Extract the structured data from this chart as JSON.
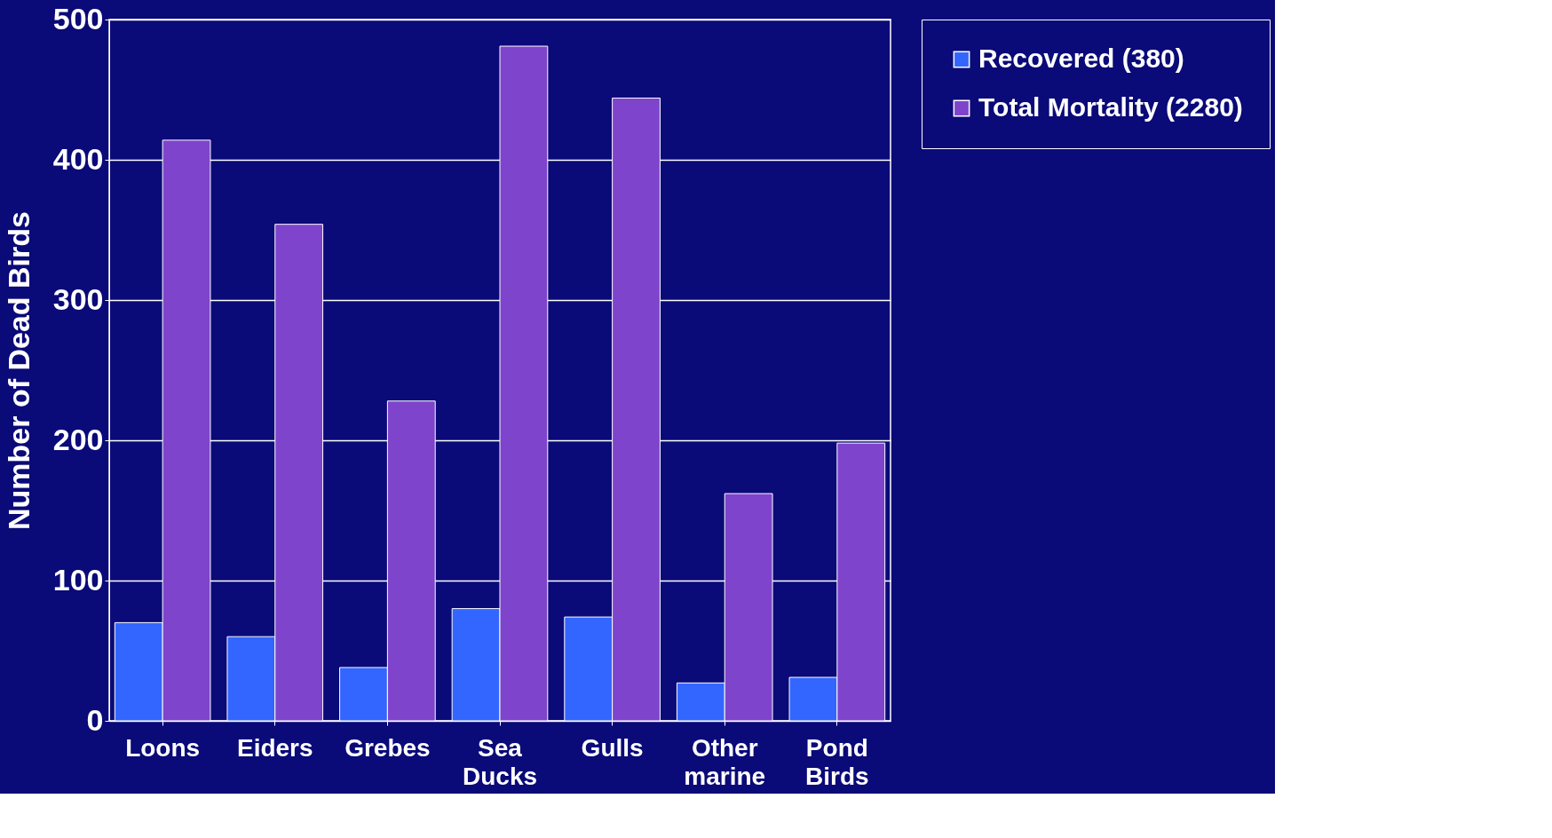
{
  "chart_data": {
    "type": "bar",
    "ylabel": "Number of Dead Birds",
    "categories": [
      "Loons",
      "Eiders",
      "Grebes",
      "Sea Ducks",
      "Gulls",
      "Other marine",
      "Pond Birds"
    ],
    "series": [
      {
        "name": "Recovered (380)",
        "color": "#3366ff",
        "values": [
          70,
          60,
          38,
          80,
          74,
          27,
          31
        ]
      },
      {
        "name": "Total Mortality (2280)",
        "color": "#7f44cc",
        "values": [
          414,
          354,
          228,
          481,
          444,
          162,
          198
        ]
      }
    ],
    "ylim": [
      0,
      500
    ],
    "yticks": [
      0,
      100,
      200,
      300,
      400,
      500
    ],
    "grid": "y",
    "legend": "right"
  }
}
